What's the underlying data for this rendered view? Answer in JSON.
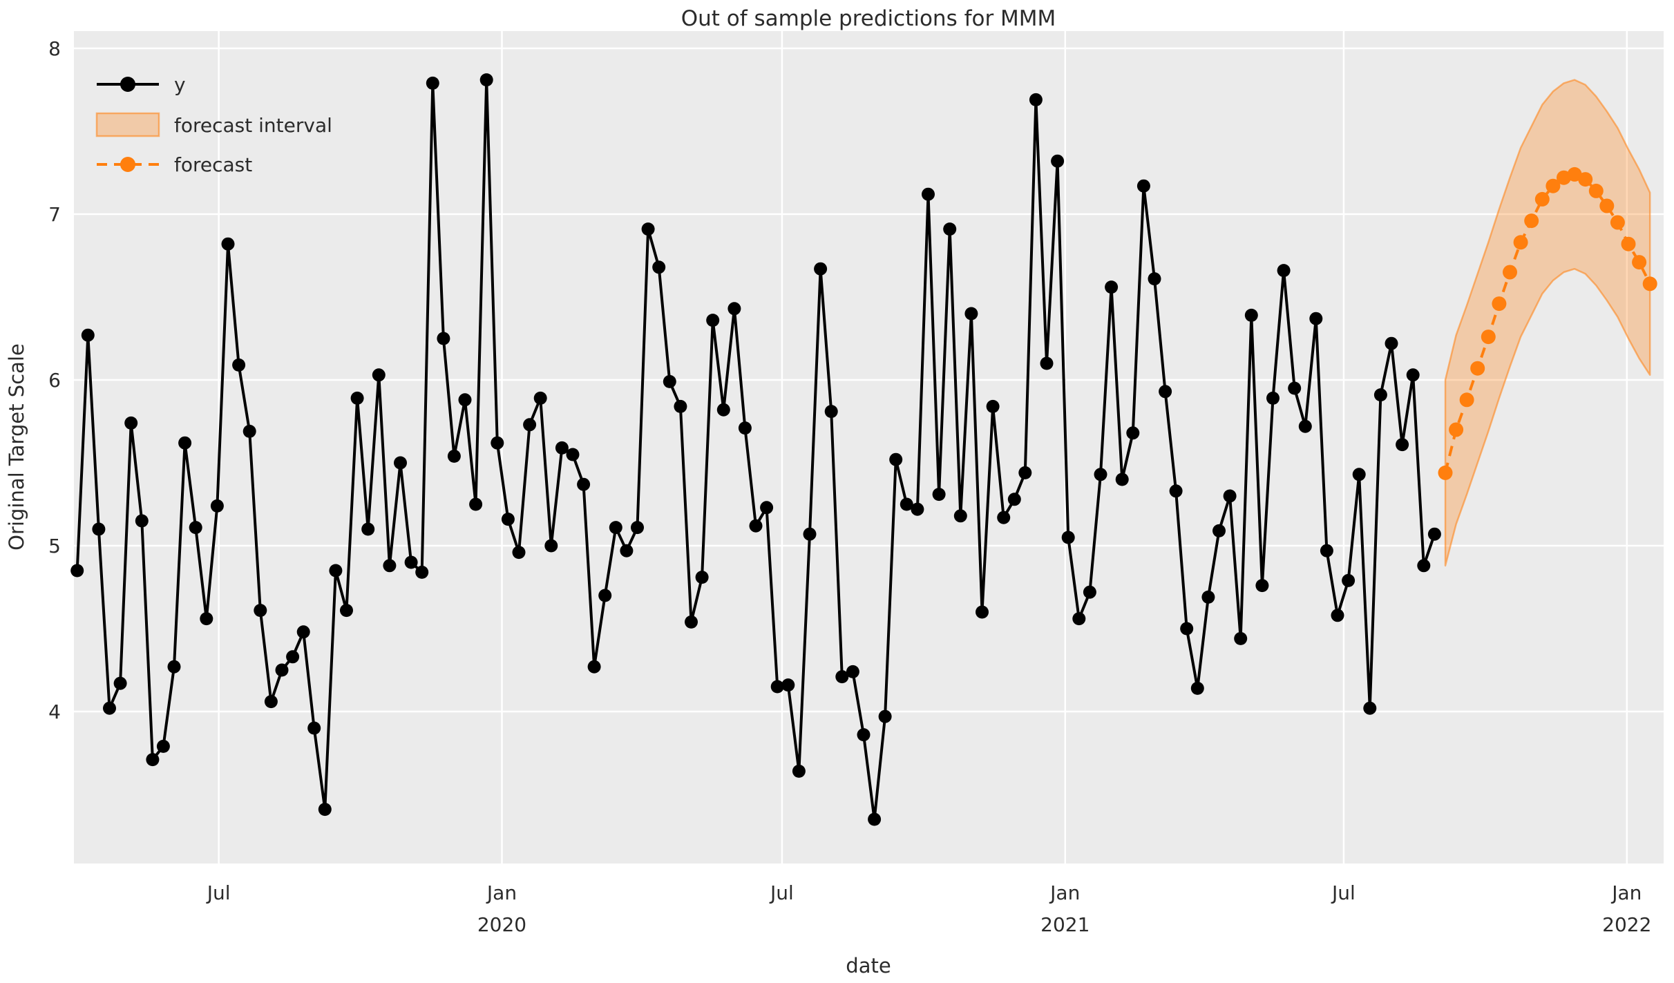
{
  "figure": {
    "title": "Out of sample predictions for MMM",
    "colors": {
      "figure_background": "#ffffff",
      "axes_background": "#ebebeb",
      "grid": "#ffffff",
      "text": "#2b2b2b",
      "y_series": "#000000",
      "forecast_series": "#ff7f0e",
      "forecast_band_fill": "rgba(255,127,14,0.30)",
      "forecast_band_edge": "rgba(255,127,14,0.55)"
    }
  },
  "axes": {
    "xlabel": "date",
    "ylabel": "Original Target Scale",
    "yticks": [
      8,
      7,
      6,
      5,
      4
    ],
    "ylim": [
      3.08,
      8.1
    ],
    "xticks": [
      {
        "label": "Jul",
        "year": "",
        "date": "2019-07-01"
      },
      {
        "label": "Jan",
        "year": "2020",
        "date": "2020-01-01"
      },
      {
        "label": "Jul",
        "year": "",
        "date": "2020-07-01"
      },
      {
        "label": "Jan",
        "year": "2021",
        "date": "2021-01-01"
      },
      {
        "label": "Jul",
        "year": "",
        "date": "2021-07-01"
      },
      {
        "label": "Jan",
        "year": "2022",
        "date": "2022-01-01"
      }
    ],
    "xlim_dates": [
      "2019-03-29",
      "2022-01-25"
    ],
    "grid": true
  },
  "legend": {
    "position": "upper left",
    "items": [
      {
        "label": "y",
        "type": "line_marker",
        "color": "#000000"
      },
      {
        "label": "forecast interval",
        "type": "patch",
        "color": "rgba(255,127,14,0.30)",
        "edge": "rgba(255,127,14,0.55)"
      },
      {
        "label": "forecast",
        "type": "dashed_line_marker",
        "color": "#ff7f0e"
      }
    ]
  },
  "chart_data": {
    "type": "line",
    "title": "Out of sample predictions for MMM",
    "xlabel": "date",
    "ylabel": "Original Target Scale",
    "x_frequency": "weekly",
    "legend_position": "upper left",
    "grid": true,
    "series": [
      {
        "name": "y",
        "style": "solid_line_with_markers",
        "color": "#000000",
        "start_date": "2019-03-31",
        "freq_days": 7,
        "values": [
          4.85,
          6.27,
          5.1,
          4.02,
          4.17,
          5.74,
          5.15,
          3.71,
          3.79,
          4.27,
          5.62,
          5.11,
          4.56,
          5.24,
          6.82,
          6.09,
          5.69,
          4.61,
          4.06,
          4.25,
          4.33,
          4.48,
          3.9,
          3.41,
          4.85,
          4.61,
          5.89,
          5.1,
          6.03,
          4.88,
          5.5,
          4.9,
          4.84,
          7.79,
          6.25,
          5.54,
          5.88,
          5.25,
          7.81,
          5.62,
          5.16,
          4.96,
          5.73,
          5.89,
          5.0,
          5.59,
          5.55,
          5.37,
          4.27,
          4.7,
          5.11,
          4.97,
          5.11,
          6.91,
          6.68,
          5.99,
          5.84,
          4.54,
          4.81,
          6.36,
          5.82,
          6.43,
          5.71,
          5.12,
          5.23,
          4.15,
          4.16,
          3.64,
          5.07,
          6.67,
          5.81,
          4.21,
          4.24,
          3.86,
          3.35,
          3.97,
          5.52,
          5.25,
          5.22,
          7.12,
          5.31,
          6.91,
          5.18,
          6.4,
          4.6,
          5.84,
          5.17,
          5.28,
          5.44,
          7.69,
          6.1,
          7.32,
          5.05,
          4.56,
          4.72,
          5.43,
          6.56,
          5.4,
          5.68,
          7.17,
          6.61,
          5.93,
          5.33,
          4.5,
          4.14,
          4.69,
          5.09,
          5.3,
          4.44,
          6.39,
          4.76,
          5.89,
          6.66,
          5.95,
          5.72,
          6.37,
          4.97,
          4.58,
          4.79,
          5.43,
          4.02,
          5.91,
          6.22,
          5.61,
          6.03,
          4.88,
          5.07
        ]
      },
      {
        "name": "forecast",
        "style": "dashed_line_with_markers",
        "color": "#ff7f0e",
        "start_date": "2021-09-05",
        "freq_days": 7,
        "values": [
          5.44,
          5.7,
          5.88,
          6.07,
          6.26,
          6.46,
          6.65,
          6.83,
          6.96,
          7.09,
          7.17,
          7.22,
          7.24,
          7.21,
          7.14,
          7.05,
          6.95,
          6.82,
          6.71,
          6.58
        ]
      },
      {
        "name": "forecast interval",
        "style": "band",
        "color": "rgba(255,127,14,0.30)",
        "start_date": "2021-09-05",
        "freq_days": 7,
        "lower": [
          4.88,
          5.13,
          5.31,
          5.5,
          5.69,
          5.89,
          6.08,
          6.26,
          6.39,
          6.52,
          6.6,
          6.65,
          6.67,
          6.64,
          6.57,
          6.48,
          6.38,
          6.25,
          6.13,
          6.03
        ],
        "upper": [
          6.0,
          6.27,
          6.45,
          6.64,
          6.83,
          7.03,
          7.22,
          7.4,
          7.53,
          7.66,
          7.74,
          7.79,
          7.81,
          7.78,
          7.71,
          7.62,
          7.52,
          7.39,
          7.27,
          7.13
        ]
      }
    ]
  }
}
